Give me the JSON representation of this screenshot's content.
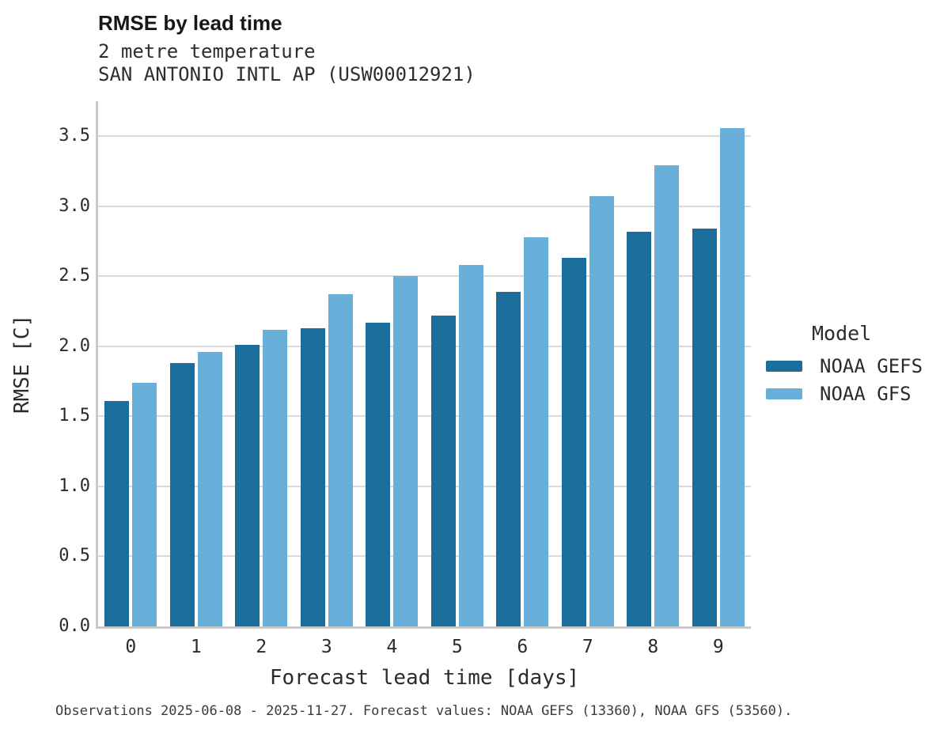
{
  "header": {
    "title": "RMSE by lead time",
    "subtitle": "2 metre temperature",
    "station": "SAN ANTONIO INTL AP (USW00012921)"
  },
  "legend": {
    "title": "Model"
  },
  "footer": {
    "text": "Observations 2025-06-08 - 2025-11-27. Forecast values: NOAA GEFS (13360), NOAA GFS (53560)."
  },
  "colors": {
    "gefs_bar": "#1b6d9c",
    "gfs_bar": "#68b0d9",
    "gridline": "#dadada",
    "spine": "#c9c9c9",
    "text": "#2b2b2b"
  },
  "chart_data": {
    "type": "bar",
    "title": "RMSE by lead time",
    "subtitle": "2 metre temperature",
    "station": "SAN ANTONIO INTL AP (USW00012921)",
    "xlabel": "Forecast lead time [days]",
    "ylabel": "RMSE [C]",
    "categories": [
      "0",
      "1",
      "2",
      "3",
      "4",
      "5",
      "6",
      "7",
      "8",
      "9"
    ],
    "series": [
      {
        "name": "NOAA GEFS",
        "color": "#1b6d9c",
        "values": [
          1.61,
          1.88,
          2.01,
          2.13,
          2.17,
          2.22,
          2.39,
          2.63,
          2.82,
          2.84
        ]
      },
      {
        "name": "NOAA GFS",
        "color": "#68b0d9",
        "values": [
          1.74,
          1.96,
          2.12,
          2.37,
          2.5,
          2.58,
          2.78,
          3.07,
          3.29,
          3.56
        ]
      }
    ],
    "ylim": [
      0,
      3.75
    ],
    "yticks": [
      0.0,
      0.5,
      1.0,
      1.5,
      2.0,
      2.5,
      3.0,
      3.5
    ],
    "grid": "horizontal",
    "legend_title": "Model",
    "legend_position": "right",
    "caption": "Observations 2025-06-08 - 2025-11-27. Forecast values: NOAA GEFS (13360), NOAA GFS (53560)."
  }
}
